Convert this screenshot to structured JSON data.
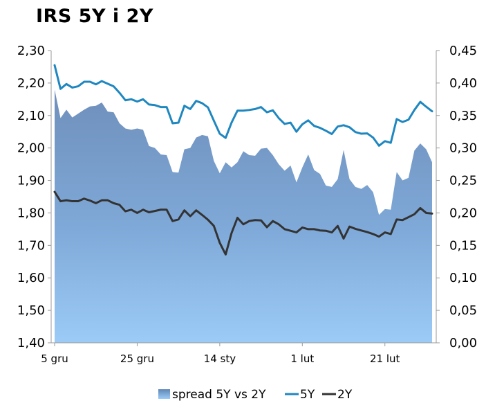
{
  "chart_data": {
    "type": "area",
    "title": "IRS 5Y i 2Y",
    "x_tick_labels": [
      "5 gru",
      "25 gru",
      "14 sty",
      "1 lut",
      "21 lut"
    ],
    "left_axis": {
      "ylim": [
        1.4,
        2.3
      ],
      "ticks": [
        "1,40",
        "1,50",
        "1,60",
        "1,70",
        "1,80",
        "1,90",
        "2,00",
        "2,10",
        "2,20",
        "2,30"
      ]
    },
    "right_axis": {
      "ylim": [
        0.0,
        0.45
      ],
      "ticks": [
        "0,00",
        "0,05",
        "0,10",
        "0,15",
        "0,20",
        "0,25",
        "0,30",
        "0,35",
        "0,40",
        "0,45"
      ]
    },
    "tick_index_positions": [
      0,
      14,
      28,
      42,
      56
    ],
    "series": [
      {
        "name": "spread 5Y vs 2Y",
        "axis": "right",
        "kind": "area",
        "color": "#5e87b8",
        "values": [
          0.39,
          0.346,
          0.359,
          0.347,
          0.353,
          0.359,
          0.364,
          0.365,
          0.37,
          0.356,
          0.355,
          0.338,
          0.33,
          0.328,
          0.33,
          0.328,
          0.303,
          0.3,
          0.29,
          0.289,
          0.263,
          0.262,
          0.298,
          0.3,
          0.316,
          0.32,
          0.318,
          0.28,
          0.261,
          0.278,
          0.27,
          0.278,
          0.295,
          0.289,
          0.288,
          0.299,
          0.3,
          0.289,
          0.275,
          0.265,
          0.273,
          0.247,
          0.27,
          0.29,
          0.266,
          0.26,
          0.242,
          0.24,
          0.252,
          0.297,
          0.252,
          0.24,
          0.237,
          0.243,
          0.232,
          0.197,
          0.206,
          0.205,
          0.263,
          0.25,
          0.254,
          0.296,
          0.307,
          0.298,
          0.278
        ]
      },
      {
        "name": "5Y",
        "axis": "left",
        "kind": "line",
        "color": "#1f87c0",
        "values": [
          2.255,
          2.182,
          2.197,
          2.186,
          2.19,
          2.204,
          2.204,
          2.196,
          2.206,
          2.198,
          2.19,
          2.17,
          2.147,
          2.15,
          2.143,
          2.15,
          2.134,
          2.132,
          2.126,
          2.126,
          2.076,
          2.078,
          2.13,
          2.12,
          2.145,
          2.138,
          2.125,
          2.084,
          2.044,
          2.031,
          2.078,
          2.115,
          2.115,
          2.117,
          2.12,
          2.126,
          2.11,
          2.116,
          2.092,
          2.074,
          2.078,
          2.05,
          2.073,
          2.085,
          2.068,
          2.062,
          2.053,
          2.043,
          2.066,
          2.07,
          2.064,
          2.049,
          2.044,
          2.045,
          2.032,
          2.007,
          2.021,
          2.016,
          2.089,
          2.08,
          2.087,
          2.117,
          2.142,
          2.127,
          2.113
        ]
      },
      {
        "name": "2Y",
        "axis": "left",
        "kind": "line",
        "color": "#333333",
        "values": [
          1.865,
          1.836,
          1.839,
          1.836,
          1.836,
          1.844,
          1.838,
          1.83,
          1.839,
          1.839,
          1.83,
          1.825,
          1.805,
          1.81,
          1.8,
          1.81,
          1.802,
          1.806,
          1.81,
          1.81,
          1.775,
          1.78,
          1.808,
          1.79,
          1.808,
          1.794,
          1.779,
          1.76,
          1.708,
          1.672,
          1.738,
          1.785,
          1.765,
          1.775,
          1.778,
          1.777,
          1.756,
          1.775,
          1.765,
          1.75,
          1.745,
          1.74,
          1.755,
          1.75,
          1.75,
          1.746,
          1.745,
          1.74,
          1.76,
          1.721,
          1.758,
          1.751,
          1.746,
          1.741,
          1.735,
          1.727,
          1.74,
          1.735,
          1.78,
          1.778,
          1.787,
          1.796,
          1.815,
          1.8,
          1.798
        ]
      }
    ],
    "legend": {
      "position": "bottom",
      "entries": [
        "spread 5Y vs 2Y",
        "5Y",
        "2Y"
      ]
    }
  }
}
